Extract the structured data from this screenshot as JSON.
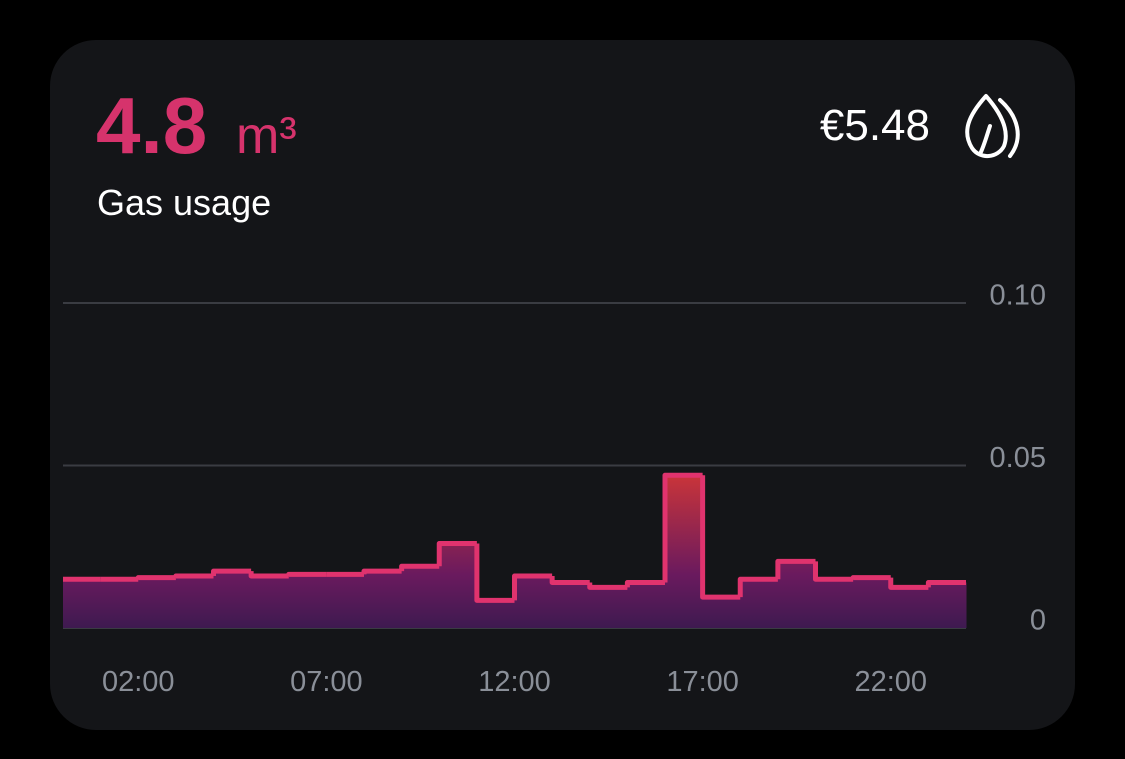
{
  "header": {
    "value": "4.8",
    "unit": "m³",
    "label": "Gas usage",
    "cost": "€5.48"
  },
  "chart_data": {
    "type": "step-area",
    "x": [
      0,
      1,
      2,
      3,
      4,
      5,
      6,
      7,
      8,
      9,
      10,
      11,
      12,
      13,
      14,
      15,
      16,
      17,
      18,
      19,
      20,
      21,
      22,
      23
    ],
    "values": [
      0.015,
      0.015,
      0.0155,
      0.016,
      0.0175,
      0.016,
      0.0165,
      0.0165,
      0.0175,
      0.019,
      0.026,
      0.0085,
      0.016,
      0.014,
      0.0125,
      0.014,
      0.047,
      0.0095,
      0.015,
      0.0205,
      0.015,
      0.0155,
      0.0125,
      0.014
    ],
    "color": "#e0336e",
    "xlim": [
      0,
      24
    ],
    "xticks": [
      {
        "value": 2,
        "label": "02:00"
      },
      {
        "value": 7,
        "label": "07:00"
      },
      {
        "value": 12,
        "label": "12:00"
      },
      {
        "value": 17,
        "label": "17:00"
      },
      {
        "value": 22,
        "label": "22:00"
      }
    ],
    "ylim": [
      0,
      0.1
    ],
    "yticks": [
      0,
      {
        "value": 0.05,
        "label": "0.05"
      },
      {
        "value": 0.1,
        "label": "0.10"
      }
    ],
    "grid": true
  }
}
